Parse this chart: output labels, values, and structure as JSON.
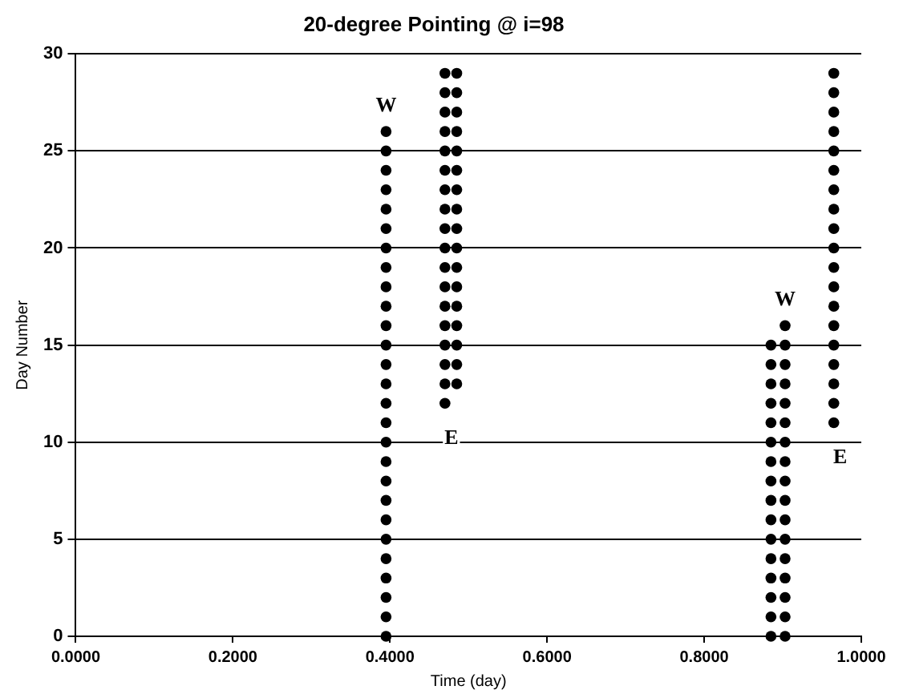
{
  "chart_data": {
    "type": "scatter",
    "title": "20-degree Pointing @ i=98",
    "xlabel": "Time (day)",
    "ylabel": "Day Number",
    "xlim": [
      0,
      1
    ],
    "xticks": [
      {
        "value": 0,
        "label": "0.0000"
      },
      {
        "value": 0.2,
        "label": "0.2000"
      },
      {
        "value": 0.4,
        "label": "0.4000"
      },
      {
        "value": 0.6,
        "label": "0.6000"
      },
      {
        "value": 0.8,
        "label": "0.8000"
      },
      {
        "value": 1,
        "label": "1.0000"
      }
    ],
    "ylim": [
      0,
      30
    ],
    "yticks": [
      0,
      5,
      10,
      15,
      20,
      25,
      30
    ],
    "grid": "y",
    "legend": false,
    "marker": "circle",
    "series": [
      {
        "color": "#000000",
        "x": [
          0.395,
          0.395,
          0.395,
          0.395,
          0.395,
          0.395,
          0.395,
          0.395,
          0.395,
          0.395,
          0.395,
          0.395,
          0.395,
          0.395,
          0.395,
          0.395,
          0.395,
          0.395,
          0.395,
          0.395,
          0.395,
          0.395,
          0.395,
          0.395,
          0.395,
          0.395,
          0.395
        ],
        "values": [
          0,
          1,
          2,
          3,
          4,
          5,
          6,
          7,
          8,
          9,
          10,
          11,
          12,
          13,
          14,
          15,
          16,
          17,
          18,
          19,
          20,
          21,
          22,
          23,
          24,
          25,
          26
        ]
      },
      {
        "color": "#000000",
        "x": [
          0.47,
          0.47,
          0.47,
          0.47,
          0.47,
          0.47,
          0.47,
          0.47,
          0.47,
          0.47,
          0.47,
          0.47,
          0.47,
          0.47,
          0.47,
          0.47,
          0.47,
          0.47
        ],
        "values": [
          12,
          13,
          14,
          15,
          16,
          17,
          18,
          19,
          20,
          21,
          22,
          23,
          24,
          25,
          26,
          27,
          28,
          29
        ]
      },
      {
        "color": "#000000",
        "x": [
          0.485,
          0.485,
          0.485,
          0.485,
          0.485,
          0.485,
          0.485,
          0.485,
          0.485,
          0.485,
          0.485,
          0.485,
          0.485,
          0.485,
          0.485,
          0.485,
          0.485
        ],
        "values": [
          13,
          14,
          15,
          16,
          17,
          18,
          19,
          20,
          21,
          22,
          23,
          24,
          25,
          26,
          27,
          28,
          29
        ]
      },
      {
        "color": "#000000",
        "x": [
          0.885,
          0.885,
          0.885,
          0.885,
          0.885,
          0.885,
          0.885,
          0.885,
          0.885,
          0.885,
          0.885,
          0.885,
          0.885,
          0.885,
          0.885,
          0.885
        ],
        "values": [
          0,
          1,
          2,
          3,
          4,
          5,
          6,
          7,
          8,
          9,
          10,
          11,
          12,
          13,
          14,
          15
        ]
      },
      {
        "color": "#000000",
        "x": [
          0.903,
          0.903,
          0.903,
          0.903,
          0.903,
          0.903,
          0.903,
          0.903,
          0.903,
          0.903,
          0.903,
          0.903,
          0.903,
          0.903,
          0.903,
          0.903,
          0.903
        ],
        "values": [
          0,
          1,
          2,
          3,
          4,
          5,
          6,
          7,
          8,
          9,
          10,
          11,
          12,
          13,
          14,
          15,
          16
        ]
      },
      {
        "color": "#000000",
        "x": [
          0.965,
          0.965,
          0.965,
          0.965,
          0.965,
          0.965,
          0.965,
          0.965,
          0.965,
          0.965,
          0.965,
          0.965,
          0.965,
          0.965,
          0.965,
          0.965,
          0.965,
          0.965,
          0.965
        ],
        "values": [
          11,
          12,
          13,
          14,
          15,
          16,
          17,
          18,
          19,
          20,
          21,
          22,
          23,
          24,
          25,
          26,
          27,
          28,
          29
        ]
      }
    ],
    "annotations": [
      {
        "text": "W",
        "x": 0.395,
        "y": 26
      },
      {
        "text": "E",
        "x": 0.47,
        "y": 12
      },
      {
        "text": "W",
        "x": 0.903,
        "y": 16
      },
      {
        "text": "E",
        "x": 0.965,
        "y": 11
      }
    ]
  }
}
